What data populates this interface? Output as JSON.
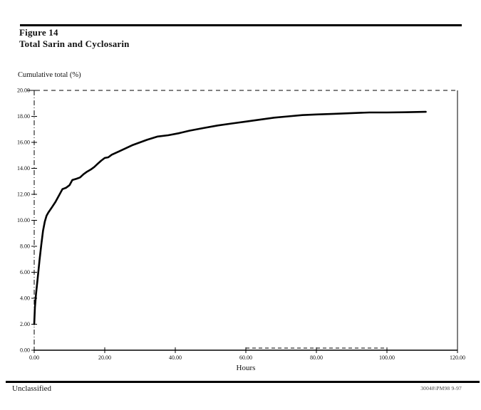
{
  "page": {
    "figure_label": "Figure 14",
    "figure_title": "Total Sarin and Cyclosarin",
    "footer_left": "Unclassified",
    "footer_right": "30048\\PM98 9-97"
  },
  "chart_data": {
    "type": "line",
    "title": "Total Sarin and Cyclosarin",
    "ylabel": "Cumulative total (%)",
    "xlabel": "Hours",
    "xlim": [
      0,
      120
    ],
    "ylim": [
      0,
      20
    ],
    "xticks": [
      0,
      20,
      40,
      60,
      80,
      100,
      120
    ],
    "yticks": [
      0,
      2,
      4,
      6,
      8,
      10,
      12,
      14,
      16,
      18,
      20
    ],
    "tick_decimals": 2,
    "grid": "dashed line at y=20 across plot; partial dashed segment at y=0 from x=60 to x=100",
    "legend": "none",
    "line_color": "#000000",
    "series": [
      {
        "name": "Total Sarin and Cyclosarin cumulative percent",
        "points": [
          [
            0,
            2.0
          ],
          [
            0.2,
            3.3
          ],
          [
            0.5,
            4.3
          ],
          [
            1,
            5.6
          ],
          [
            1.5,
            6.9
          ],
          [
            2,
            8.1
          ],
          [
            2.5,
            9.2
          ],
          [
            3,
            9.9
          ],
          [
            3.5,
            10.35
          ],
          [
            4,
            10.6
          ],
          [
            5,
            11.0
          ],
          [
            6,
            11.4
          ],
          [
            7,
            11.9
          ],
          [
            7.5,
            12.15
          ],
          [
            8,
            12.4
          ],
          [
            9,
            12.5
          ],
          [
            10,
            12.7
          ],
          [
            10.8,
            13.1
          ],
          [
            12,
            13.2
          ],
          [
            13,
            13.3
          ],
          [
            14,
            13.55
          ],
          [
            15,
            13.75
          ],
          [
            16,
            13.9
          ],
          [
            17,
            14.1
          ],
          [
            18,
            14.35
          ],
          [
            19,
            14.6
          ],
          [
            20,
            14.8
          ],
          [
            21,
            14.85
          ],
          [
            22,
            15.05
          ],
          [
            24,
            15.3
          ],
          [
            26,
            15.55
          ],
          [
            28,
            15.8
          ],
          [
            30,
            16.0
          ],
          [
            32,
            16.2
          ],
          [
            35,
            16.45
          ],
          [
            38,
            16.55
          ],
          [
            41,
            16.7
          ],
          [
            44,
            16.9
          ],
          [
            48,
            17.1
          ],
          [
            52,
            17.3
          ],
          [
            56,
            17.45
          ],
          [
            60,
            17.6
          ],
          [
            64,
            17.75
          ],
          [
            68,
            17.9
          ],
          [
            72,
            18.0
          ],
          [
            76,
            18.1
          ],
          [
            80,
            18.15
          ],
          [
            85,
            18.2
          ],
          [
            90,
            18.25
          ],
          [
            95,
            18.3
          ],
          [
            100,
            18.3
          ],
          [
            105,
            18.32
          ],
          [
            111,
            18.35
          ]
        ]
      }
    ]
  }
}
